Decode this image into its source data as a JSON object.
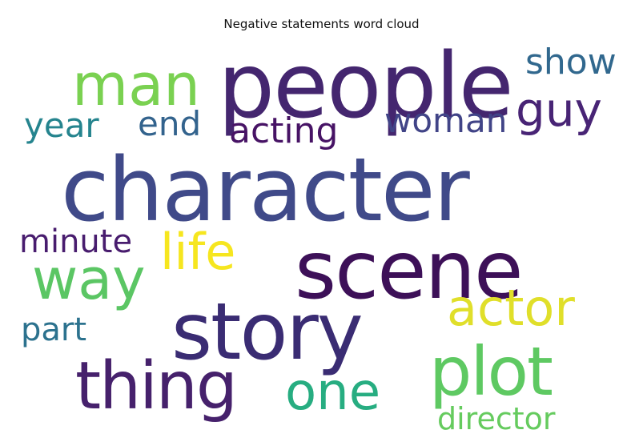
{
  "title": "Negative statements word cloud",
  "words": [
    {
      "text": "character",
      "color": "#404a89"
    },
    {
      "text": "people",
      "color": "#44266f"
    },
    {
      "text": "scene",
      "color": "#3d1058"
    },
    {
      "text": "story",
      "color": "#3a2c73"
    },
    {
      "text": "thing",
      "color": "#46216c"
    },
    {
      "text": "plot",
      "color": "#5ec962"
    },
    {
      "text": "man",
      "color": "#7ad151"
    },
    {
      "text": "way",
      "color": "#5bc664"
    },
    {
      "text": "one",
      "color": "#27ad81"
    },
    {
      "text": "actor",
      "color": "#e0df2a"
    },
    {
      "text": "life",
      "color": "#f6e61f"
    },
    {
      "text": "guy",
      "color": "#482475"
    },
    {
      "text": "show",
      "color": "#31688e"
    },
    {
      "text": "acting",
      "color": "#471365"
    },
    {
      "text": "woman",
      "color": "#414487"
    },
    {
      "text": "year",
      "color": "#25848e"
    },
    {
      "text": "end",
      "color": "#33638d"
    },
    {
      "text": "minute",
      "color": "#481c6e"
    },
    {
      "text": "part",
      "color": "#2c728e"
    },
    {
      "text": "director",
      "color": "#65cb5e"
    }
  ]
}
